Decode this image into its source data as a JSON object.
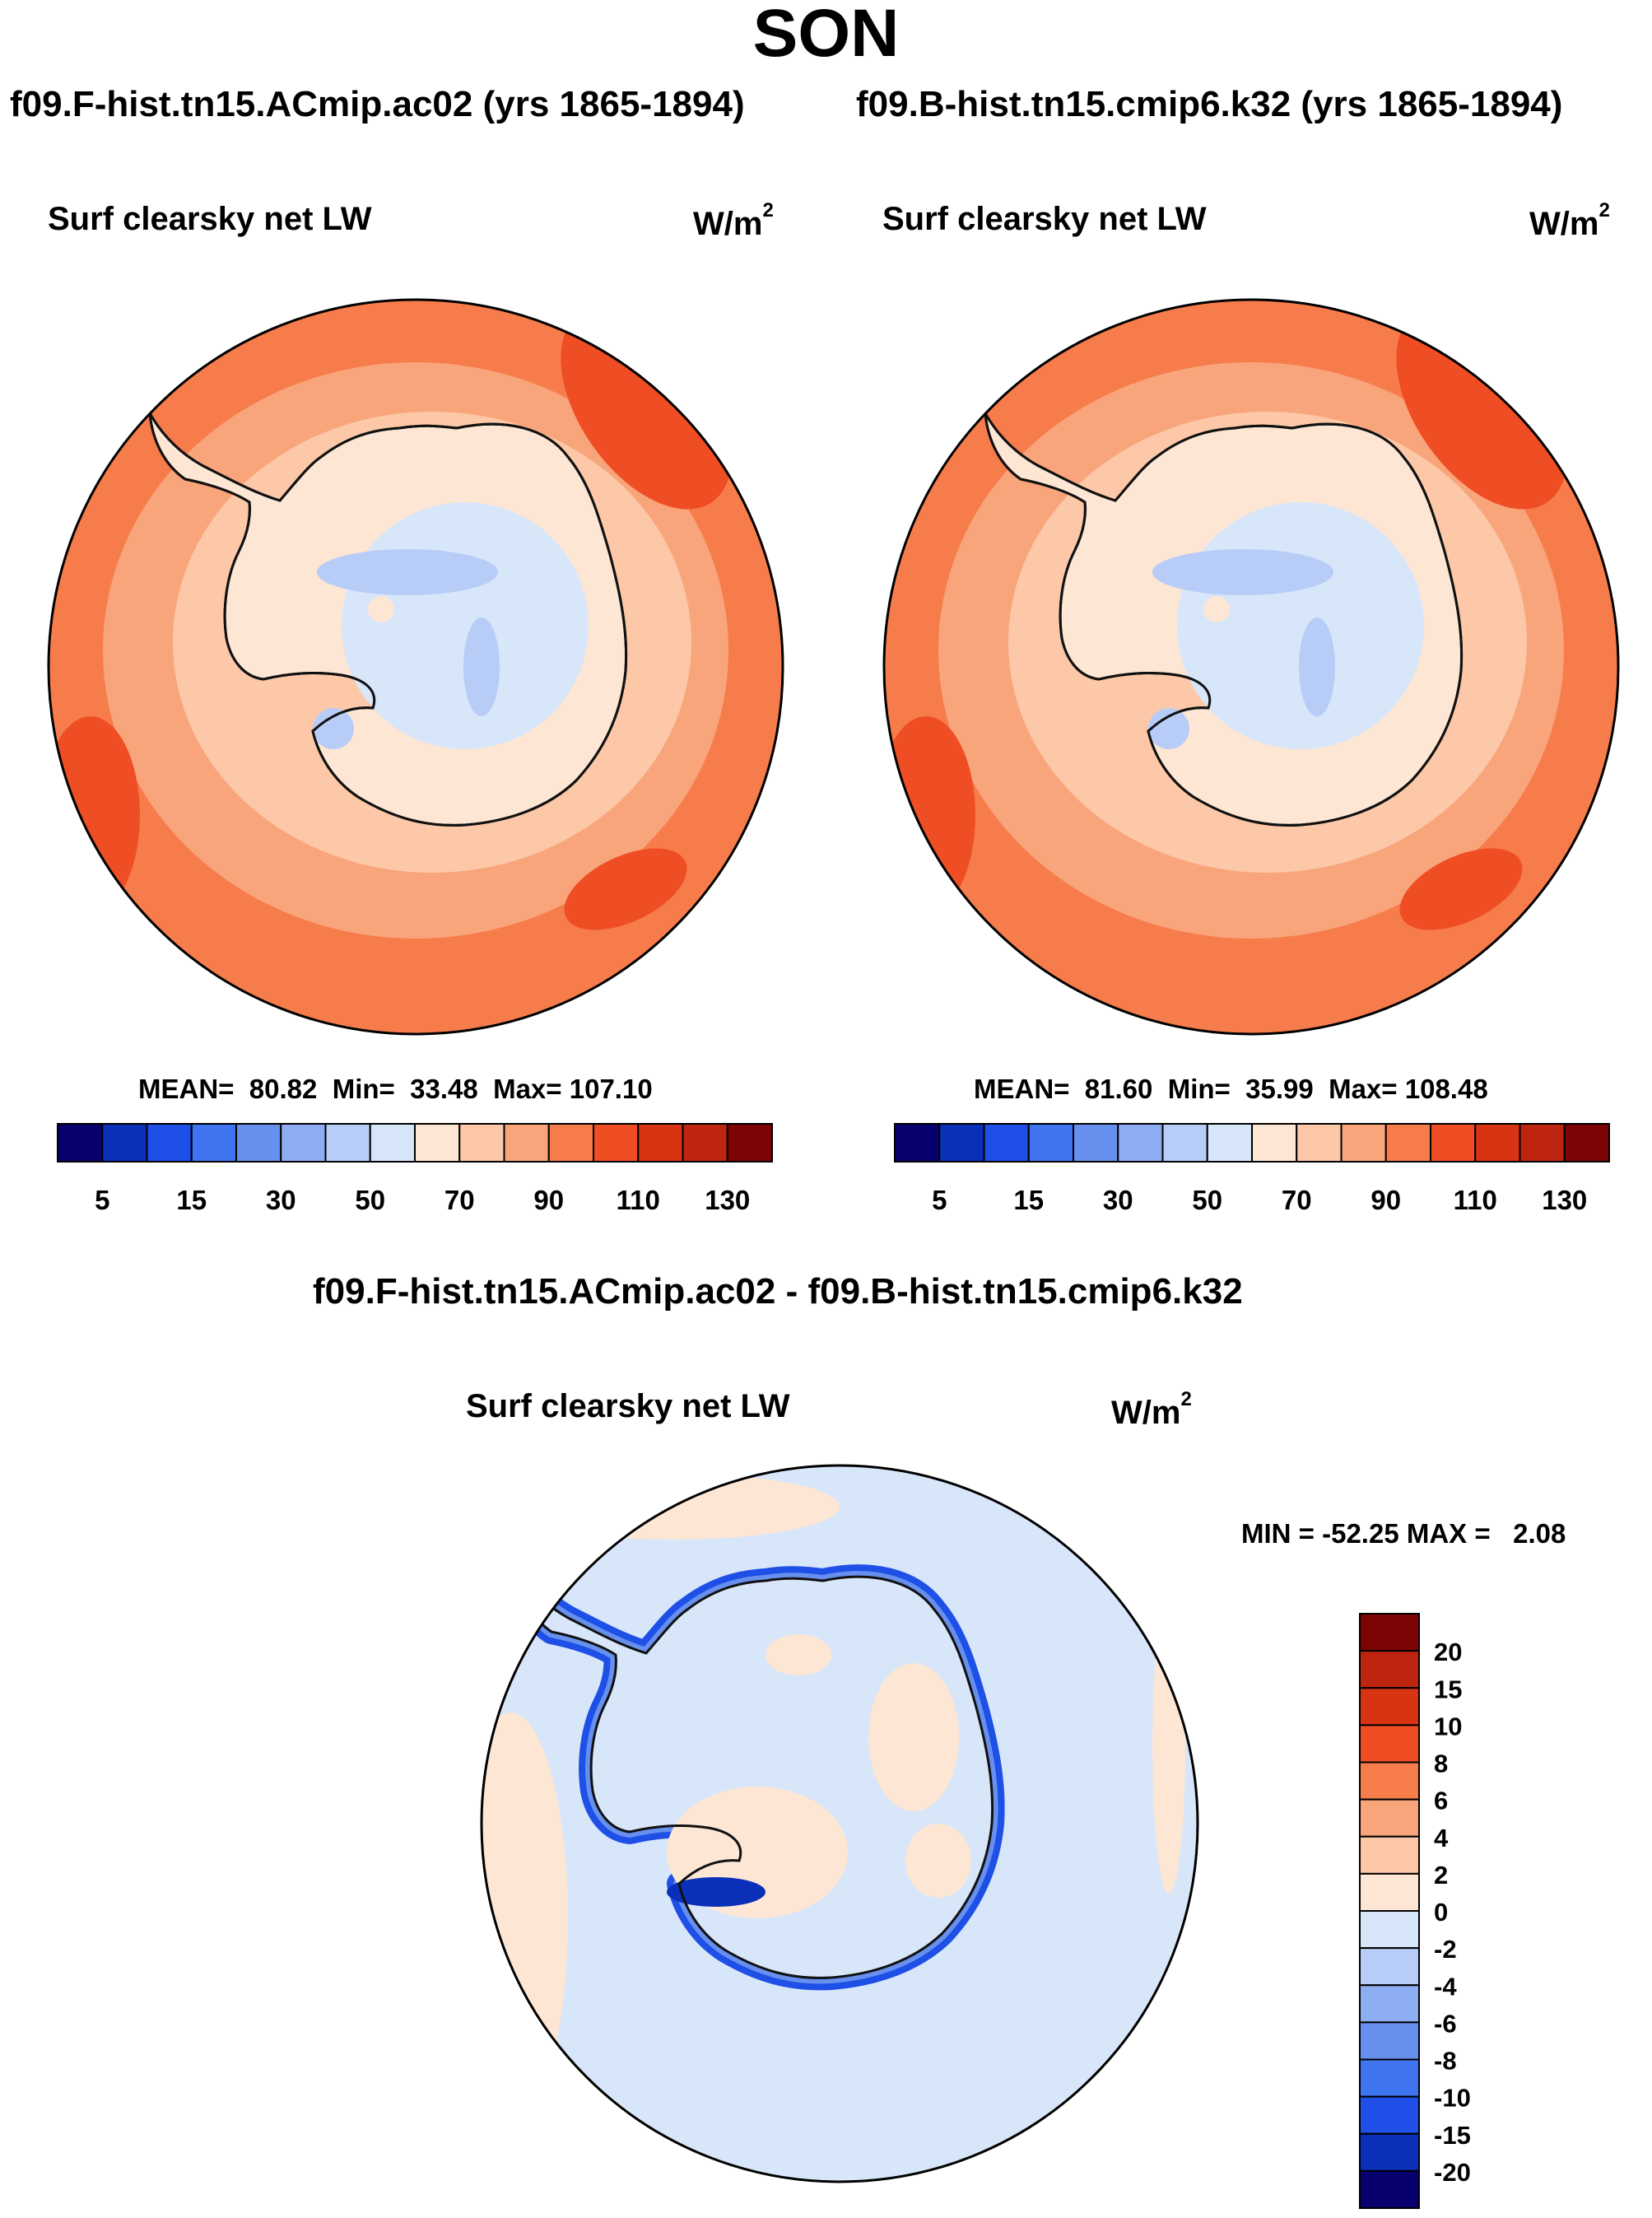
{
  "page": {
    "season": "SON",
    "difference_title": "f09.F-hist.tn15.ACmip.ac02 - f09.B-hist.tn15.cmip6.k32"
  },
  "chart_data": [
    {
      "type": "heatmap",
      "projection": "south-polar-stereographic",
      "case": "f09.F-hist.tn15.ACmip.ac02 (yrs 1865-1894)",
      "title": "Surf clearsky net LW",
      "units_base": "W/m",
      "units_exp": "2",
      "stats": {
        "mean_label": "MEAN=",
        "mean": "80.82",
        "min_label": "Min=",
        "min": "33.48",
        "max_label": "Max=",
        "max": "107.10"
      },
      "colorbar": {
        "orientation": "horizontal",
        "levels": [
          5,
          10,
          15,
          20,
          30,
          40,
          50,
          60,
          70,
          80,
          90,
          100,
          110,
          120,
          130
        ],
        "tick_labels": [
          "5",
          "15",
          "30",
          "50",
          "70",
          "90",
          "110",
          "130"
        ]
      }
    },
    {
      "type": "heatmap",
      "projection": "south-polar-stereographic",
      "case": "f09.B-hist.tn15.cmip6.k32 (yrs 1865-1894)",
      "title": "Surf clearsky net LW",
      "units_base": "W/m",
      "units_exp": "2",
      "stats": {
        "mean_label": "MEAN=",
        "mean": "81.60",
        "min_label": "Min=",
        "min": "35.99",
        "max_label": "Max=",
        "max": "108.48"
      },
      "colorbar": {
        "orientation": "horizontal",
        "levels": [
          5,
          10,
          15,
          20,
          30,
          40,
          50,
          60,
          70,
          80,
          90,
          100,
          110,
          120,
          130
        ],
        "tick_labels": [
          "5",
          "15",
          "30",
          "50",
          "70",
          "90",
          "110",
          "130"
        ]
      }
    },
    {
      "type": "heatmap",
      "projection": "south-polar-stereographic",
      "title": "Surf clearsky net LW",
      "units_base": "W/m",
      "units_exp": "2",
      "stats": {
        "min_label": "MIN =",
        "min": "-52.25",
        "max_label": "MAX =",
        "max": "2.08"
      },
      "colorbar": {
        "orientation": "vertical",
        "levels": [
          -20,
          -15,
          -10,
          -8,
          -6,
          -4,
          -2,
          0,
          2,
          4,
          6,
          8,
          10,
          15,
          20
        ],
        "tick_labels": [
          "20",
          "15",
          "10",
          "8",
          "6",
          "4",
          "2",
          "0",
          "-2",
          "-4",
          "-6",
          "-8",
          "-10",
          "-15",
          "-20"
        ]
      }
    }
  ],
  "colors": {
    "abs_palette": [
      "#08006e",
      "#0a2fb8",
      "#1e4fe6",
      "#3f74f0",
      "#6790ee",
      "#8daef2",
      "#b7cdf7",
      "#d8e6fa",
      "#fde6d4",
      "#fcc8a8",
      "#f9a57c",
      "#f77c4c",
      "#ef4e24",
      "#d83413",
      "#bd2511",
      "#7d0404"
    ],
    "diff_palette": [
      "#08006e",
      "#0a2fb8",
      "#1e4fe6",
      "#3f74f0",
      "#6790ee",
      "#8daef2",
      "#b7cdf7",
      "#d8e6fa",
      "#fde6d4",
      "#fcc8a8",
      "#f9a57c",
      "#f77c4c",
      "#ef4e24",
      "#d83413",
      "#bd2511",
      "#7d0404"
    ],
    "coastline": "#111111"
  }
}
